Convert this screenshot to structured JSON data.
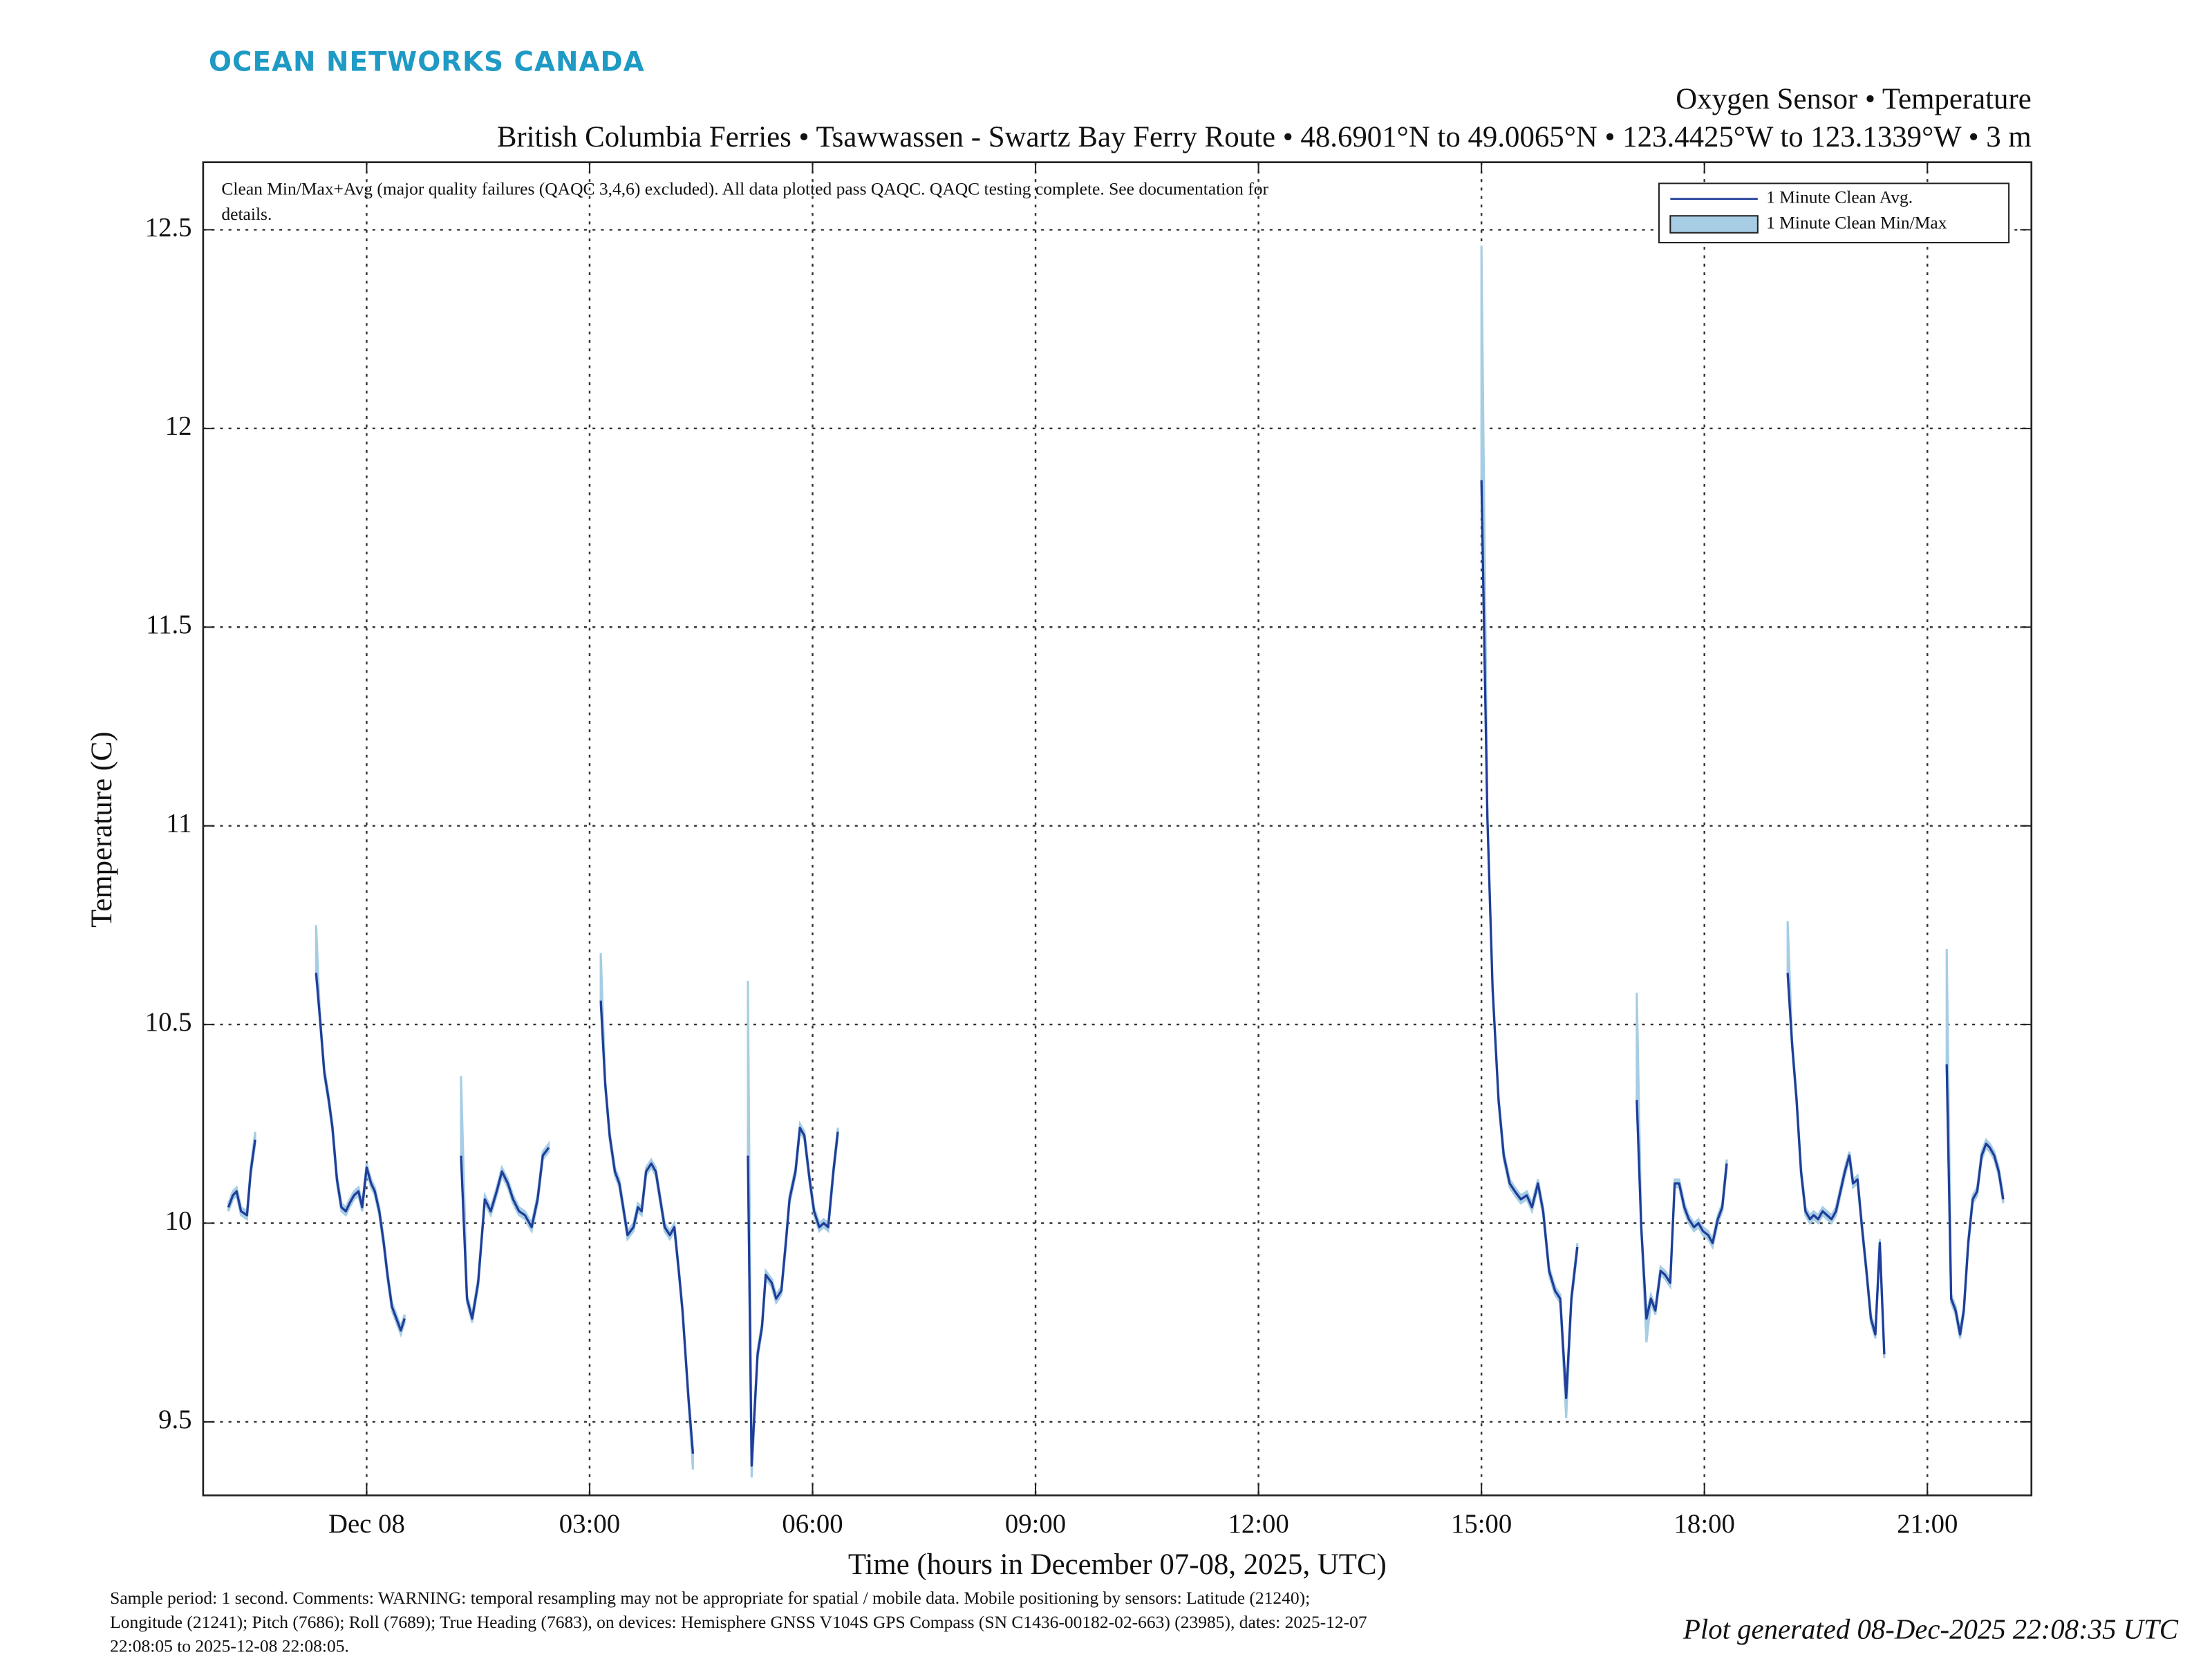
{
  "chart_data": {
    "type": "line",
    "brand": "OCEAN NETWORKS CANADA",
    "title": "Oxygen Sensor • Temperature",
    "subtitle": "British Columbia Ferries • Tsawwassen - Swartz Bay Ferry Route • 48.6901°N to 49.0065°N • 123.4425°W to 123.1339°W • 3 m",
    "note_lines": [
      "Clean Min/Max+Avg (major quality failures (QAQC 3,4,6) excluded).  All data plotted pass QAQC. QAQC testing complete. See documentation for",
      "details."
    ],
    "xlabel": "Time (hours in December 07-08, 2025, UTC)",
    "ylabel": "Temperature (C)",
    "footer_lines": [
      "Sample period: 1 second. Comments: WARNING: temporal resampling may not be appropriate for spatial / mobile data. Mobile positioning by sensors: Latitude (21240);",
      "Longitude (21241); Pitch (7686); Roll (7689); True Heading (7683), on devices: Hemisphere GNSS V104S GPS Compass (SN C1436-00182-02-663) (23985), dates: 2025-12-07",
      "22:08:05 to 2025-12-08 22:08:05."
    ],
    "generated": "Plot generated 08-Dec-2025 22:08:35 UTC",
    "xlim": [
      -2.2,
      22.4
    ],
    "ylim": [
      9.315,
      12.67
    ],
    "xticks": [
      {
        "value": 0,
        "label": "Dec 08"
      },
      {
        "value": 3,
        "label": "03:00"
      },
      {
        "value": 6,
        "label": "06:00"
      },
      {
        "value": 9,
        "label": "09:00"
      },
      {
        "value": 12,
        "label": "12:00"
      },
      {
        "value": 15,
        "label": "15:00"
      },
      {
        "value": 18,
        "label": "18:00"
      },
      {
        "value": 21,
        "label": "21:00"
      }
    ],
    "yticks": [
      9.5,
      10,
      10.5,
      11,
      11.5,
      12,
      12.5
    ],
    "grid": true,
    "legend": "upper right",
    "x": [
      -1.86,
      -1.8,
      -1.75,
      -1.69,
      -1.61,
      -1.56,
      -1.5,
      -1.0,
      -0.68,
      -0.63,
      -0.57,
      -0.51,
      -0.46,
      -0.4,
      -0.34,
      -0.28,
      -0.23,
      -0.17,
      -0.11,
      -0.06,
      0.0,
      0.06,
      0.11,
      0.17,
      0.23,
      0.28,
      0.34,
      0.4,
      0.46,
      0.51,
      0.9,
      1.27,
      1.35,
      1.42,
      1.5,
      1.59,
      1.67,
      1.75,
      1.82,
      1.9,
      1.97,
      2.05,
      2.13,
      2.22,
      2.3,
      2.37,
      2.45,
      2.9,
      3.15,
      3.21,
      3.27,
      3.34,
      3.4,
      3.46,
      3.51,
      3.59,
      3.65,
      3.7,
      3.76,
      3.83,
      3.89,
      3.95,
      4.01,
      4.08,
      4.14,
      4.2,
      4.25,
      4.33,
      4.39,
      4.7,
      5.13,
      5.18,
      5.26,
      5.32,
      5.37,
      5.45,
      5.51,
      5.58,
      5.64,
      5.69,
      5.77,
      5.83,
      5.89,
      5.96,
      6.02,
      6.09,
      6.15,
      6.21,
      6.28,
      6.34,
      10.0,
      15.0,
      15.08,
      15.15,
      15.23,
      15.3,
      15.38,
      15.45,
      15.53,
      15.61,
      15.68,
      15.76,
      15.83,
      15.91,
      15.99,
      16.06,
      16.14,
      16.21,
      16.29,
      16.8,
      17.09,
      17.15,
      17.22,
      17.28,
      17.34,
      17.41,
      17.47,
      17.54,
      17.6,
      17.66,
      17.73,
      17.79,
      17.86,
      17.92,
      17.98,
      18.05,
      18.11,
      18.18,
      18.24,
      18.3,
      18.7,
      19.12,
      19.18,
      19.24,
      19.3,
      19.36,
      19.42,
      19.47,
      19.53,
      19.59,
      19.65,
      19.71,
      19.77,
      19.83,
      19.89,
      19.95,
      20.0,
      20.06,
      20.12,
      20.18,
      20.24,
      20.3,
      20.36,
      20.42,
      20.8,
      21.26,
      21.32,
      21.38,
      21.44,
      21.49,
      21.55,
      21.61,
      21.67,
      21.73,
      21.79,
      21.84,
      21.9,
      21.96,
      22.02
    ],
    "series": [
      {
        "name": "1 Minute Clean Avg.",
        "color": "#1f3d99",
        "values": [
          10.04,
          10.07,
          10.08,
          10.03,
          10.02,
          10.13,
          10.21,
          null,
          10.63,
          10.52,
          10.38,
          10.31,
          10.24,
          10.11,
          10.04,
          10.03,
          10.05,
          10.07,
          10.08,
          10.04,
          10.14,
          10.1,
          10.08,
          10.03,
          9.95,
          9.87,
          9.79,
          9.76,
          9.73,
          9.76,
          null,
          10.17,
          9.81,
          9.76,
          9.85,
          10.06,
          10.03,
          10.08,
          10.13,
          10.1,
          10.06,
          10.03,
          10.02,
          9.99,
          10.06,
          10.17,
          10.19,
          null,
          10.56,
          10.35,
          10.22,
          10.13,
          10.1,
          10.03,
          9.97,
          9.99,
          10.04,
          10.03,
          10.13,
          10.15,
          10.13,
          10.06,
          9.99,
          9.97,
          9.99,
          9.88,
          9.78,
          9.56,
          9.42,
          null,
          10.17,
          9.39,
          9.67,
          9.74,
          9.87,
          9.85,
          9.81,
          9.83,
          9.95,
          10.06,
          10.13,
          10.24,
          10.22,
          10.11,
          10.03,
          9.99,
          10.0,
          9.99,
          10.13,
          10.23,
          null,
          11.87,
          11.02,
          10.59,
          10.31,
          10.17,
          10.1,
          10.08,
          10.06,
          10.07,
          10.04,
          10.1,
          10.03,
          9.88,
          9.83,
          9.81,
          9.56,
          9.81,
          9.94,
          null,
          10.31,
          9.99,
          9.76,
          9.81,
          9.78,
          9.88,
          9.87,
          9.85,
          10.1,
          10.1,
          10.04,
          10.01,
          9.99,
          10.0,
          9.98,
          9.97,
          9.95,
          10.01,
          10.04,
          10.15,
          null,
          10.63,
          10.45,
          10.31,
          10.13,
          10.03,
          10.01,
          10.02,
          10.01,
          10.03,
          10.02,
          10.01,
          10.03,
          10.08,
          10.13,
          10.17,
          10.1,
          10.11,
          9.99,
          9.88,
          9.76,
          9.72,
          9.95,
          9.67,
          null,
          10.4,
          9.81,
          9.78,
          9.72,
          9.78,
          9.95,
          10.06,
          10.08,
          10.17,
          10.2,
          10.19,
          10.17,
          10.13,
          10.06
        ]
      },
      {
        "name": "1 Minute Clean Min/Max",
        "color": "#a6cde3",
        "values": [
          10.05,
          10.08,
          10.09,
          10.04,
          10.03,
          10.14,
          10.23,
          null,
          10.75,
          10.53,
          10.39,
          10.32,
          10.25,
          10.12,
          10.05,
          10.04,
          10.06,
          10.08,
          10.09,
          10.05,
          10.15,
          10.11,
          10.09,
          10.04,
          9.96,
          9.88,
          9.8,
          9.77,
          9.74,
          9.77,
          null,
          10.37,
          9.82,
          9.77,
          9.86,
          10.07,
          10.04,
          10.09,
          10.14,
          10.11,
          10.07,
          10.04,
          10.03,
          10.0,
          10.07,
          10.18,
          10.2,
          null,
          10.68,
          10.36,
          10.23,
          10.14,
          10.11,
          10.04,
          9.98,
          10.0,
          10.05,
          10.04,
          10.14,
          10.16,
          10.14,
          10.07,
          10.0,
          9.98,
          10.0,
          9.89,
          9.79,
          9.57,
          9.43,
          null,
          10.61,
          9.4,
          9.68,
          9.75,
          9.88,
          9.86,
          9.82,
          9.84,
          9.96,
          10.07,
          10.14,
          10.25,
          10.23,
          10.12,
          10.04,
          10.0,
          10.01,
          10.0,
          10.14,
          10.24,
          null,
          12.46,
          11.03,
          10.6,
          10.32,
          10.18,
          10.11,
          10.09,
          10.07,
          10.08,
          10.05,
          10.11,
          10.04,
          9.89,
          9.84,
          9.82,
          9.57,
          9.82,
          9.95,
          null,
          10.58,
          10.0,
          9.77,
          9.82,
          9.79,
          9.89,
          9.88,
          9.86,
          10.11,
          10.11,
          10.05,
          10.02,
          10.0,
          10.01,
          9.99,
          9.98,
          9.96,
          10.02,
          10.05,
          10.16,
          null,
          10.76,
          10.46,
          10.32,
          10.14,
          10.04,
          10.02,
          10.03,
          10.02,
          10.04,
          10.03,
          10.02,
          10.04,
          10.09,
          10.14,
          10.18,
          10.11,
          10.12,
          10.0,
          9.89,
          9.77,
          9.73,
          9.96,
          9.68,
          null,
          10.69,
          9.82,
          9.79,
          9.73,
          9.79,
          9.96,
          10.07,
          10.09,
          10.18,
          10.21,
          10.2,
          10.18,
          10.14,
          10.07
        ],
        "lower": [
          10.03,
          10.06,
          10.07,
          10.02,
          10.01,
          10.12,
          10.2,
          null,
          10.62,
          10.51,
          10.37,
          10.3,
          10.23,
          10.1,
          10.03,
          10.02,
          10.04,
          10.06,
          10.07,
          10.03,
          10.13,
          10.09,
          10.07,
          10.02,
          9.94,
          9.86,
          9.78,
          9.75,
          9.72,
          9.75,
          null,
          10.16,
          9.8,
          9.75,
          9.84,
          10.05,
          10.02,
          10.07,
          10.12,
          10.09,
          10.05,
          10.02,
          10.01,
          9.98,
          10.05,
          10.16,
          10.18,
          null,
          10.55,
          10.34,
          10.21,
          10.12,
          10.09,
          10.02,
          9.96,
          9.98,
          10.03,
          10.02,
          10.12,
          10.14,
          10.12,
          10.05,
          9.98,
          9.96,
          9.98,
          9.87,
          9.77,
          9.55,
          9.38,
          null,
          10.16,
          9.36,
          9.66,
          9.73,
          9.86,
          9.84,
          9.8,
          9.82,
          9.94,
          10.05,
          10.12,
          10.23,
          10.21,
          10.1,
          10.02,
          9.98,
          9.99,
          9.98,
          10.12,
          10.22,
          null,
          11.86,
          11.01,
          10.58,
          10.3,
          10.16,
          10.09,
          10.07,
          10.05,
          10.06,
          10.03,
          10.09,
          10.02,
          9.87,
          9.82,
          9.8,
          9.51,
          9.8,
          9.93,
          null,
          10.3,
          9.98,
          9.7,
          9.8,
          9.77,
          9.87,
          9.86,
          9.84,
          10.09,
          10.09,
          10.03,
          10.0,
          9.98,
          9.99,
          9.97,
          9.96,
          9.94,
          10.0,
          10.03,
          10.14,
          null,
          10.62,
          10.44,
          10.3,
          10.12,
          10.02,
          10.0,
          10.01,
          10.0,
          10.02,
          10.01,
          10.0,
          10.02,
          10.07,
          10.12,
          10.16,
          10.09,
          10.1,
          9.98,
          9.87,
          9.75,
          9.71,
          9.94,
          9.66,
          null,
          10.39,
          9.8,
          9.77,
          9.71,
          9.77,
          9.94,
          10.05,
          10.07,
          10.16,
          10.19,
          10.18,
          10.16,
          10.12,
          10.05
        ]
      }
    ]
  }
}
